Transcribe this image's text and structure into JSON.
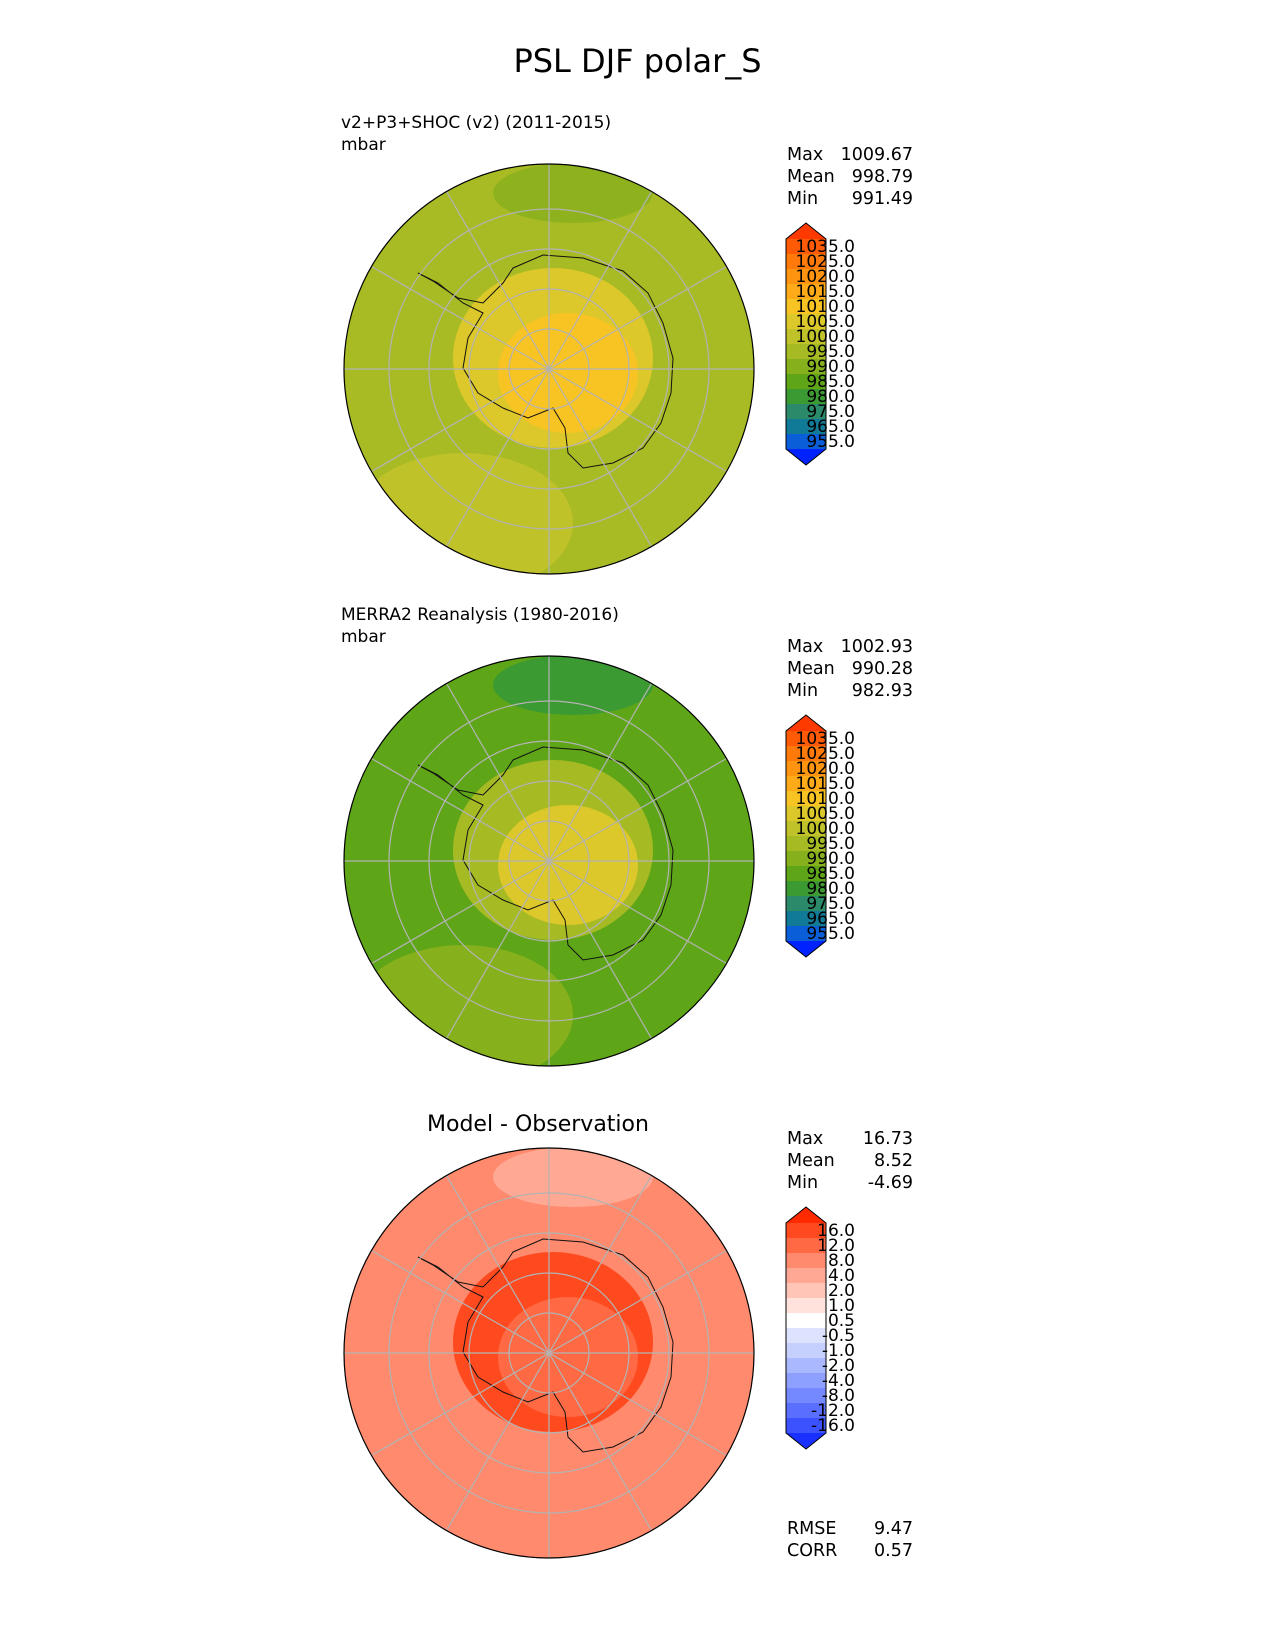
{
  "title": "PSL DJF polar_S",
  "panels": [
    {
      "id": "test",
      "title_lines": [
        "v2+P3+SHOC (v2) (2011-2015)",
        "mbar"
      ],
      "stats": [
        [
          "Max",
          "1009.67"
        ],
        [
          "Mean",
          "998.79"
        ],
        [
          "Min",
          "991.49"
        ]
      ],
      "colorbar": {
        "ticks": [
          "1035.0",
          "1025.0",
          "1020.0",
          "1015.0",
          "1010.0",
          "1005.0",
          "1000.0",
          "995.0",
          "990.0",
          "985.0",
          "980.0",
          "975.0",
          "965.0",
          "955.0"
        ],
        "colors": [
          "#ff3a00",
          "#ff5a05",
          "#ff7a0a",
          "#ff9410",
          "#ffaa18",
          "#f8c424",
          "#dcc82a",
          "#c0c229",
          "#a6ba24",
          "#86b01c",
          "#5ea618",
          "#3c9a32",
          "#2b8a6a",
          "#117a96",
          "#0a5ed8",
          "#0022ff"
        ]
      },
      "field": {
        "background": "#a9bb24",
        "outer": "#c0c229",
        "inner": "#f8c424",
        "mid": "#dcc82a",
        "band": "#8eb21e"
      }
    },
    {
      "id": "ref",
      "title_lines": [
        "MERRA2 Reanalysis (1980-2016)",
        "mbar"
      ],
      "stats": [
        [
          "Max",
          "1002.93"
        ],
        [
          "Mean",
          "990.28"
        ],
        [
          "Min",
          "982.93"
        ]
      ],
      "colorbar": {
        "ticks": [
          "1035.0",
          "1025.0",
          "1020.0",
          "1015.0",
          "1010.0",
          "1005.0",
          "1000.0",
          "995.0",
          "990.0",
          "985.0",
          "980.0",
          "975.0",
          "965.0",
          "955.0"
        ],
        "colors": [
          "#ff3a00",
          "#ff5a05",
          "#ff7a0a",
          "#ff9410",
          "#ffaa18",
          "#f8c424",
          "#dcc82a",
          "#c0c229",
          "#a6ba24",
          "#86b01c",
          "#5ea618",
          "#3c9a32",
          "#2b8a6a",
          "#117a96",
          "#0a5ed8",
          "#0022ff"
        ]
      },
      "field": {
        "background": "#5ea618",
        "outer": "#86b01c",
        "inner": "#dcc82a",
        "mid": "#a6ba24",
        "band": "#3c9a32"
      }
    },
    {
      "id": "diff",
      "center_title": "Model - Observation",
      "stats": [
        [
          "Max",
          "16.73"
        ],
        [
          "Mean",
          "8.52"
        ],
        [
          "Min",
          "-4.69"
        ]
      ],
      "colorbar": {
        "ticks": [
          "16.0",
          "12.0",
          "8.0",
          "4.0",
          "2.0",
          "1.0",
          "0.5",
          "-0.5",
          "-1.0",
          "-2.0",
          "-4.0",
          "-8.0",
          "-12.0",
          "-16.0"
        ],
        "colors": [
          "#ff2a00",
          "#ff4a20",
          "#ff6a45",
          "#ff8a6e",
          "#ffa894",
          "#ffc6b8",
          "#ffe2dc",
          "#ffffff",
          "#dde3ff",
          "#c6d0ff",
          "#aab8ff",
          "#8ea0ff",
          "#7488ff",
          "#5a6eff",
          "#3c52ff",
          "#1a30ff"
        ]
      },
      "metrics": [
        [
          "RMSE",
          "9.47"
        ],
        [
          "CORR",
          "0.57"
        ]
      ],
      "field": {
        "background": "#ff8a6e",
        "outer": "#ff8a6e",
        "inner": "#ff6a45",
        "mid": "#ff4a20",
        "band": "#ffa894"
      }
    }
  ]
}
